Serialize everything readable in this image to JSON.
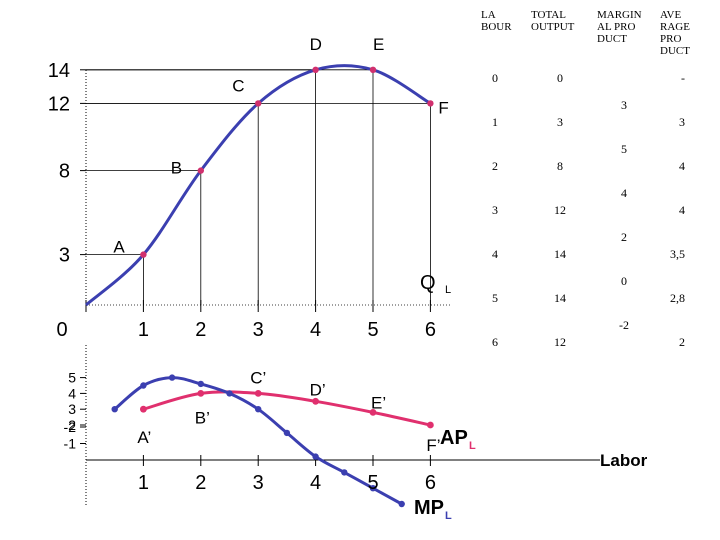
{
  "colors": {
    "curve": "#3b3fb0",
    "point_tp": "#d1306e",
    "ap_curve": "#e0306e",
    "mp_point": "#3b3fb0",
    "text": "#000000",
    "apl_label": "#e0306e",
    "mpl_label": "#3b3fb0"
  },
  "chart_data": [
    {
      "type": "line",
      "name_label": "Q",
      "name_sub": "L",
      "x_ticks": [
        "0",
        "1",
        "2",
        "3",
        "4",
        "5",
        "6"
      ],
      "y_ticks": [
        "3",
        "8",
        "12",
        "14"
      ],
      "series": [
        {
          "values": [
            0,
            3,
            8,
            12,
            14,
            14,
            12
          ],
          "x": [
            0,
            1,
            2,
            3,
            4,
            5,
            6
          ]
        }
      ],
      "point_labels": [
        "",
        "A",
        "B",
        "C",
        "D",
        "E",
        "F"
      ],
      "ylim": [
        0,
        15
      ],
      "xlim": [
        0,
        6.4
      ]
    },
    {
      "type": "line",
      "x_ticks": [
        "1",
        "2",
        "3",
        "4",
        "5",
        "6"
      ],
      "y_ticks": [
        "5",
        "4",
        "3",
        "2",
        "-1",
        "-2"
      ],
      "xlabel": "Labor",
      "series": [
        {
          "name": "AP",
          "name_sub": "L",
          "x": [
            1,
            2,
            3,
            4,
            5,
            6
          ],
          "values": [
            3,
            4,
            4,
            3.5,
            2.8,
            2
          ]
        },
        {
          "name": "MP",
          "name_sub": "L",
          "x": [
            0.5,
            1,
            1.5,
            2,
            2.5,
            3,
            3.5,
            4,
            4.5,
            5,
            5.5
          ],
          "values": [
            3,
            4.5,
            5,
            4.6,
            4,
            3,
            1.5,
            0,
            -1,
            -2,
            -3
          ]
        }
      ],
      "point_labels": [
        "A’",
        "B’",
        "C’",
        "D’",
        "E’",
        "F’"
      ]
    }
  ],
  "table": {
    "headers": [
      "LA BOUR",
      "TOTAL OUTPUT",
      "MARGIN AL PRO DUCT",
      "AVE RAGE PRO DUCT"
    ],
    "header_lines": [
      [
        "LA",
        "BOUR"
      ],
      [
        "TOTAL",
        "OUTPUT"
      ],
      [
        "MARGIN",
        "AL PRO",
        "DUCT"
      ],
      [
        "AVE",
        "RAGE",
        "PRO",
        "DUCT"
      ]
    ],
    "rows": [
      {
        "labor": "0",
        "output": "0",
        "ap": "-"
      },
      {
        "labor": "1",
        "output": "3",
        "ap": "3"
      },
      {
        "labor": "2",
        "output": "8",
        "ap": "4"
      },
      {
        "labor": "3",
        "output": "12",
        "ap": "4"
      },
      {
        "labor": "4",
        "output": "14",
        "ap": "3,5"
      },
      {
        "labor": "5",
        "output": "14",
        "ap": "2,8"
      },
      {
        "labor": "6",
        "output": "12",
        "ap": "2"
      }
    ],
    "marginal": [
      "3",
      "5",
      "4",
      "2",
      "0",
      "-2"
    ]
  }
}
